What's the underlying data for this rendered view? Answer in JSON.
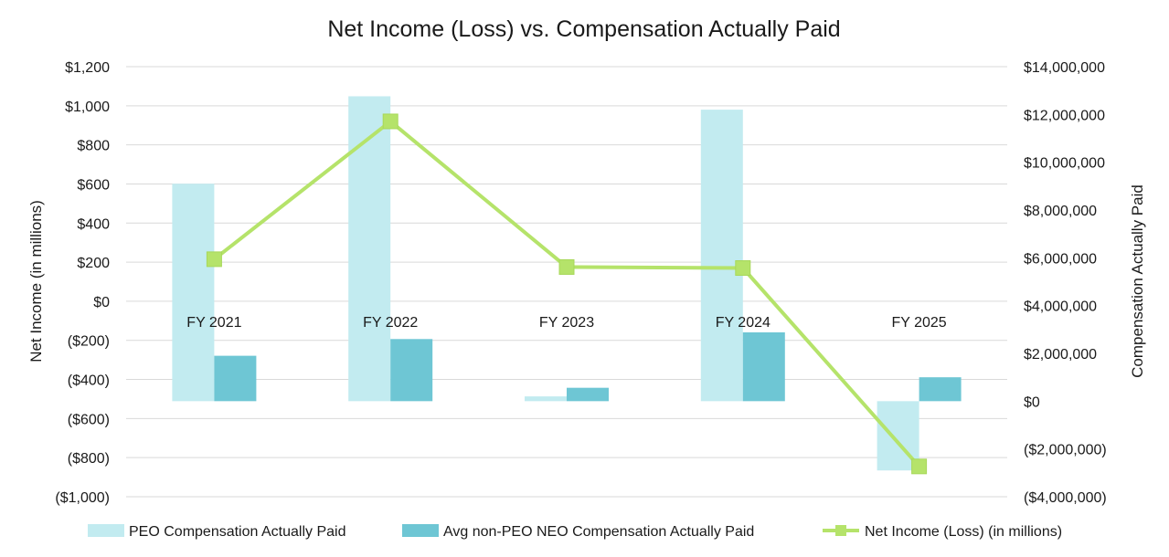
{
  "chart_data": {
    "type": "bar",
    "title": "Net Income (Loss) vs. Compensation Actually Paid",
    "categories": [
      "FY 2021",
      "FY 2022",
      "FY 2023",
      "FY 2024",
      "FY 2025"
    ],
    "ylabel_left": "Net Income (in millions)",
    "ylabel_right": "Compensation Actually Paid",
    "ylim_left": [
      -1000,
      1200
    ],
    "ylim_right": [
      -4000000,
      14000000
    ],
    "left_ticks": [
      1200,
      1000,
      800,
      600,
      400,
      200,
      0,
      -200,
      -400,
      -600,
      -800,
      -1000
    ],
    "left_tick_labels": [
      "$1,200",
      "$1,000",
      "$800",
      "$600",
      "$400",
      "$200",
      "$0",
      "($200)",
      "($400)",
      "($600)",
      "($800)",
      "($1,000)"
    ],
    "right_ticks": [
      14000000,
      12000000,
      10000000,
      8000000,
      6000000,
      4000000,
      2000000,
      0,
      -2000000,
      -4000000
    ],
    "right_tick_labels": [
      "$14,000,000",
      "$12,000,000",
      "$10,000,000",
      "$8,000,000",
      "$6,000,000",
      "$4,000,000",
      "$2,000,000",
      "$0",
      "($2,000,000)",
      "($4,000,000)"
    ],
    "series": [
      {
        "name": "PEO Compensation Actually Paid",
        "type": "bar",
        "axis": "right",
        "color": "#c2ebf0",
        "values": [
          9100000,
          12760000,
          200000,
          12200000,
          -2900000
        ]
      },
      {
        "name": "Avg non-PEO NEO Compensation Actually Paid",
        "type": "bar",
        "axis": "right",
        "color": "#6ec6d4",
        "values": [
          1900000,
          2600000,
          560000,
          2880000,
          1000000
        ]
      },
      {
        "name": "Net Income (Loss) (in millions)",
        "type": "line",
        "axis": "left",
        "color": "#b5e36a",
        "values": [
          215,
          920,
          175,
          170,
          -845
        ]
      }
    ],
    "legend_position": "bottom",
    "grid": true
  }
}
